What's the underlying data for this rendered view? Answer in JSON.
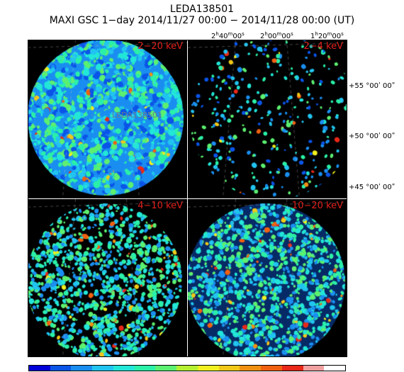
{
  "title": {
    "source": "LEDA138501",
    "subtitle": "MAXI GSC 1−day 2014/11/27 00:00 − 2014/11/28 00:00 (UT)"
  },
  "ra_labels": [
    {
      "h": "2",
      "m": "40",
      "s": "00"
    },
    {
      "h": "2",
      "m": "00",
      "s": "00"
    },
    {
      "h": "1",
      "m": "20",
      "s": "00"
    }
  ],
  "dec_labels": [
    "+55 °00ʹ 00ʺ",
    "+50 °00ʹ 00ʺ",
    "+45 °00ʹ 00ʺ"
  ],
  "panels": [
    {
      "band": "2−20 keV",
      "source_marker": "LEDA138501"
    },
    {
      "band": "2−4 keV"
    },
    {
      "band": "4−10 keV"
    },
    {
      "band": "10−20 keV"
    }
  ],
  "colorbar": [
    "#0000d8",
    "#0a55e8",
    "#1a8ef0",
    "#21c4f0",
    "#22e6d8",
    "#2af0a8",
    "#5cf070",
    "#b4f030",
    "#f0f020",
    "#f0c818",
    "#f09010",
    "#f06010",
    "#e82818",
    "#f0a0a0",
    "#ffffff"
  ]
}
